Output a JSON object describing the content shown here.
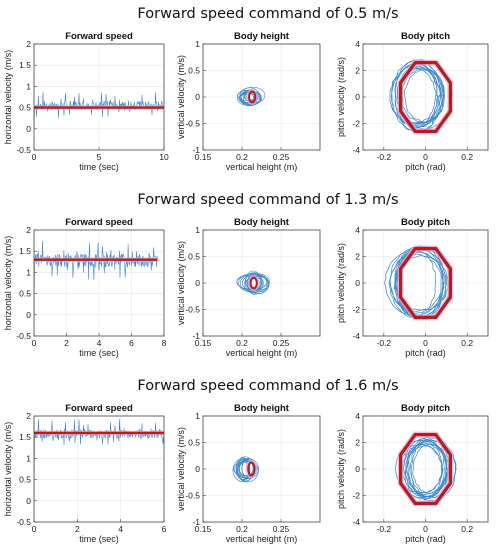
{
  "chart_data": [
    {
      "row_title": "Forward speed command of 0.5 m/s",
      "panels": [
        {
          "type": "line",
          "title": "Forward speed",
          "xlabel": "time (sec)",
          "ylabel": "horizontal velocity (m/s)",
          "xlim": [
            0,
            10
          ],
          "ylim": [
            -0.5,
            2
          ],
          "xticks": [
            0,
            5,
            10
          ],
          "yticks": [
            -0.5,
            0,
            0.5,
            1,
            1.5,
            2
          ],
          "grid": true,
          "series": [
            {
              "kind": "measured",
              "color": "#3a86c8",
              "mean": 0.55,
              "amplitude": 0.38,
              "x_end": 10
            },
            {
              "kind": "command",
              "color": "#b01e1e",
              "value": 0.5,
              "x_end": 10
            }
          ]
        },
        {
          "type": "scatter",
          "title": "Body height",
          "xlabel": "vertical height (m)",
          "ylabel": "vertical velocity (m/s)",
          "xlim": [
            0.15,
            0.3
          ],
          "ylim": [
            -1,
            1
          ],
          "xticks": [
            0.15,
            0.2,
            0.25
          ],
          "yticks": [
            -1,
            -0.5,
            0,
            0.5,
            1
          ],
          "grid": true,
          "series": [
            {
              "kind": "measured",
              "color": "#3a86c8",
              "center": [
                0.21,
                0.0
              ],
              "radius": [
                0.016,
                0.16
              ]
            },
            {
              "kind": "reference",
              "color": "#b01e1e",
              "center": [
                0.213,
                0.0
              ],
              "radius": [
                0.004,
                0.1
              ]
            }
          ]
        },
        {
          "type": "line",
          "title": "Body pitch",
          "xlabel": "pitch (rad)",
          "ylabel": "pitch velocity (rad/s)",
          "xlim": [
            -0.3,
            0.3
          ],
          "ylim": [
            -4,
            4
          ],
          "xticks": [
            -0.2,
            0,
            0.2
          ],
          "yticks": [
            -4,
            -2,
            0,
            2,
            4
          ],
          "grid": true,
          "series": [
            {
              "kind": "measured",
              "color": "#3a86c8",
              "center": [
                -0.02,
                0.1
              ],
              "radius": [
                0.12,
                2.6
              ]
            },
            {
              "kind": "reference",
              "color": "#b01e1e",
              "center": [
                0.0,
                0.0
              ],
              "radius": [
                0.12,
                2.6
              ]
            }
          ]
        }
      ]
    },
    {
      "row_title": "Forward speed command of 1.3 m/s",
      "panels": [
        {
          "type": "line",
          "title": "Forward speed",
          "xlabel": "time (sec)",
          "ylabel": "horizontal velocity (m/s)",
          "xlim": [
            0,
            8
          ],
          "ylim": [
            -0.5,
            2
          ],
          "xticks": [
            0,
            2,
            4,
            6,
            8
          ],
          "yticks": [
            -0.5,
            0,
            0.5,
            1,
            1.5,
            2
          ],
          "grid": true,
          "series": [
            {
              "kind": "measured",
              "color": "#3a86c8",
              "mean": 1.28,
              "amplitude": 0.6,
              "x_end": 7.6
            },
            {
              "kind": "command",
              "color": "#b01e1e",
              "value": 1.3,
              "x_end": 7.6
            }
          ]
        },
        {
          "type": "scatter",
          "title": "Body height",
          "xlabel": "vertical height (m)",
          "ylabel": "vertical velocity (m/s)",
          "xlim": [
            0.15,
            0.3
          ],
          "ylim": [
            -1,
            1
          ],
          "xticks": [
            0.15,
            0.2,
            0.25
          ],
          "yticks": [
            -1,
            -0.5,
            0,
            0.5,
            1
          ],
          "grid": true,
          "series": [
            {
              "kind": "measured",
              "color": "#3a86c8",
              "center": [
                0.218,
                0.0
              ],
              "radius": [
                0.018,
                0.2
              ]
            },
            {
              "kind": "reference",
              "color": "#b01e1e",
              "center": [
                0.215,
                0.0
              ],
              "radius": [
                0.004,
                0.1
              ]
            }
          ]
        },
        {
          "type": "line",
          "title": "Body pitch",
          "xlabel": "pitch (rad)",
          "ylabel": "pitch velocity (rad/s)",
          "xlim": [
            -0.3,
            0.3
          ],
          "ylim": [
            -4,
            4
          ],
          "xticks": [
            -0.2,
            0,
            0.2
          ],
          "yticks": [
            -4,
            -2,
            0,
            2,
            4
          ],
          "grid": true,
          "series": [
            {
              "kind": "measured",
              "color": "#3a86c8",
              "center": [
                -0.03,
                0.0
              ],
              "radius": [
                0.13,
                2.7
              ]
            },
            {
              "kind": "reference",
              "color": "#b01e1e",
              "center": [
                0.0,
                0.0
              ],
              "radius": [
                0.12,
                2.6
              ]
            }
          ]
        }
      ]
    },
    {
      "row_title": "Forward speed command of 1.6 m/s",
      "panels": [
        {
          "type": "line",
          "title": "Forward speed",
          "xlabel": "time (sec)",
          "ylabel": "horizontal velocity (m/s)",
          "xlim": [
            0,
            6
          ],
          "ylim": [
            -0.5,
            2
          ],
          "xticks": [
            0,
            2,
            4,
            6
          ],
          "yticks": [
            -0.5,
            0,
            0.5,
            1,
            1.5,
            2
          ],
          "grid": true,
          "series": [
            {
              "kind": "measured",
              "color": "#3a86c8",
              "mean": 1.58,
              "amplitude": 0.4,
              "x_end": 6
            },
            {
              "kind": "command",
              "color": "#b01e1e",
              "value": 1.6,
              "x_end": 6
            }
          ]
        },
        {
          "type": "scatter",
          "title": "Body height",
          "xlabel": "vertical height (m)",
          "ylabel": "vertical velocity (m/s)",
          "xlim": [
            0.15,
            0.3
          ],
          "ylim": [
            -1,
            1
          ],
          "xticks": [
            0.15,
            0.2,
            0.25
          ],
          "yticks": [
            -1,
            -0.5,
            0,
            0.5,
            1
          ],
          "grid": true,
          "series": [
            {
              "kind": "measured",
              "color": "#3a86c8",
              "center": [
                0.205,
                0.0
              ],
              "radius": [
                0.014,
                0.2
              ]
            },
            {
              "kind": "reference",
              "color": "#b01e1e",
              "center": [
                0.212,
                0.0
              ],
              "radius": [
                0.004,
                0.12
              ]
            }
          ]
        },
        {
          "type": "line",
          "title": "Body pitch",
          "xlabel": "pitch (rad)",
          "ylabel": "pitch velocity (rad/s)",
          "xlim": [
            -0.3,
            0.3
          ],
          "ylim": [
            -4,
            4
          ],
          "xticks": [
            -0.2,
            0,
            0.2
          ],
          "yticks": [
            -4,
            -2,
            0,
            2,
            4
          ],
          "grid": true,
          "series": [
            {
              "kind": "measured",
              "color": "#3a86c8",
              "center": [
                0.0,
                0.0
              ],
              "radius": [
                0.11,
                2.3
              ]
            },
            {
              "kind": "reference",
              "color": "#b01e1e",
              "center": [
                0.0,
                0.0
              ],
              "radius": [
                0.12,
                2.6
              ]
            }
          ]
        }
      ]
    }
  ]
}
